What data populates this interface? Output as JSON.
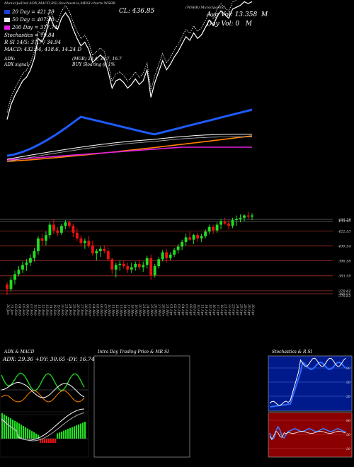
{
  "header": {
    "chart_title": "(WSBB) MunicipalInd",
    "source_line": "MunicipalInd ADX,MACD,RSI,Stochastics,MRSI charts WSBB",
    "close_label": "CL: 436.85",
    "avg_vol_label": "Avg Vol: 13.358",
    "avg_vol_unit": "M",
    "day_vol_label": "Day Vol: 0",
    "day_vol_unit": "M",
    "macd_line": "MACD: 432.84, 418.6, 14.24 D",
    "adx_label": "ADX:",
    "adx_signal_label": "ADX signal:",
    "mgr_text": "(MGR) 29.4, 30.7, 16.7",
    "buy_text": "BUY Sloaring @ 1%"
  },
  "legend": [
    {
      "label": "20  Day = 421.29",
      "color": "#1a3fd6"
    },
    {
      "label": "50  Day = 407.48",
      "color": "#f0f0f0"
    },
    {
      "label": "200  Day = 377.74",
      "color": "#e020e0"
    },
    {
      "label": "Stochastics = 79.84",
      "color": ""
    },
    {
      "label": "R       SI 14/5: 37.7 / 34.94",
      "color": ""
    }
  ],
  "chart_data": [
    {
      "type": "line",
      "name": "price panel",
      "x": [
        "30 Jan",
        "31 Jan",
        "03 Feb",
        "04 Feb",
        "05 Feb",
        "06 Feb",
        "07 Feb",
        "10 Feb",
        "11 Feb",
        "12 Feb",
        "13 Feb",
        "14 Feb",
        "18 Feb",
        "19 Feb",
        "20 Feb",
        "21 Feb",
        "24 Feb",
        "25 Feb",
        "26 Feb",
        "27 Feb",
        "28 Feb",
        "03 Mar",
        "04 Mar",
        "05 Mar",
        "06 Mar",
        "07 Mar",
        "10 Mar",
        "11 Mar",
        "12 Mar",
        "13 Mar",
        "14 Mar",
        "17 Mar",
        "18 Mar",
        "19 Mar",
        "20 Mar",
        "21 Mar",
        "24 Mar",
        "25 Mar",
        "26 Mar",
        "27 Mar",
        "28 Mar",
        "31 Mar",
        "01 Apr",
        "02 Apr",
        "03 Apr",
        "04 Apr",
        "07 Apr",
        "08 Apr",
        "09 Apr",
        "10 Apr",
        "11 Apr",
        "14 Apr",
        "15 Apr",
        "16 Apr",
        "17 Apr",
        "18 Apr",
        "21 Apr",
        "22 Apr",
        "23 Apr",
        "24 Apr",
        "25 Apr",
        "28 Apr",
        "29 Apr",
        "30 Apr"
      ],
      "series": [
        {
          "name": "20 Day MA",
          "color": "#1a3fd6"
        },
        {
          "name": "50 Day MA",
          "color": "#f0f0f0"
        },
        {
          "name": "200 Day MA",
          "color": "#e020e0"
        },
        {
          "name": "Long MA",
          "color": "#ff8000"
        }
      ]
    },
    {
      "type": "candlestick",
      "name": "candles",
      "candles": [
        [
          376,
          378,
          367,
          372
        ],
        [
          372,
          383,
          370,
          380
        ],
        [
          380,
          388,
          376,
          385
        ],
        [
          385,
          392,
          383,
          389
        ],
        [
          389,
          396,
          386,
          393
        ],
        [
          393,
          398,
          388,
          395
        ],
        [
          395,
          402,
          392,
          399
        ],
        [
          399,
          408,
          396,
          405
        ],
        [
          405,
          418,
          402,
          416
        ],
        [
          416,
          420,
          410,
          414
        ],
        [
          414,
          422,
          410,
          419
        ],
        [
          419,
          430,
          416,
          428
        ],
        [
          428,
          433,
          420,
          423
        ],
        [
          423,
          426,
          418,
          421
        ],
        [
          421,
          429,
          419,
          427
        ],
        [
          427,
          432,
          424,
          430
        ],
        [
          430,
          432,
          425,
          427
        ],
        [
          427,
          429,
          417,
          421
        ],
        [
          421,
          425,
          414,
          416
        ],
        [
          416,
          419,
          410,
          412
        ],
        [
          412,
          416,
          407,
          414
        ],
        [
          414,
          418,
          408,
          410
        ],
        [
          410,
          414,
          401,
          403
        ],
        [
          403,
          407,
          397,
          405
        ],
        [
          405,
          409,
          400,
          407
        ],
        [
          407,
          410,
          403,
          405
        ],
        [
          405,
          408,
          396,
          398
        ],
        [
          398,
          399,
          385,
          389
        ],
        [
          389,
          395,
          382,
          393
        ],
        [
          393,
          397,
          388,
          394
        ],
        [
          394,
          397,
          390,
          392
        ],
        [
          392,
          395,
          386,
          389
        ],
        [
          389,
          395,
          386,
          391
        ],
        [
          391,
          396,
          388,
          394
        ],
        [
          394,
          397,
          389,
          391
        ],
        [
          391,
          396,
          387,
          393
        ],
        [
          393,
          401,
          390,
          399
        ],
        [
          399,
          402,
          380,
          384
        ],
        [
          384,
          394,
          382,
          392
        ],
        [
          392,
          400,
          390,
          398
        ],
        [
          398,
          406,
          396,
          404
        ],
        [
          404,
          407,
          395,
          399
        ],
        [
          399,
          404,
          397,
          402
        ],
        [
          402,
          408,
          400,
          406
        ],
        [
          406,
          411,
          403,
          409
        ],
        [
          409,
          415,
          406,
          413
        ],
        [
          413,
          420,
          410,
          417
        ],
        [
          417,
          422,
          414,
          415
        ],
        [
          415,
          420,
          411,
          419
        ],
        [
          419,
          421,
          413,
          416
        ],
        [
          416,
          420,
          413,
          418
        ],
        [
          418,
          424,
          416,
          422
        ],
        [
          422,
          428,
          420,
          426
        ],
        [
          426,
          428,
          420,
          423
        ],
        [
          423,
          430,
          421,
          428
        ],
        [
          428,
          433,
          424,
          431
        ],
        [
          431,
          434,
          428,
          429
        ],
        [
          429,
          432,
          424,
          427
        ],
        [
          427,
          434,
          425,
          432
        ],
        [
          432,
          436,
          427,
          433
        ],
        [
          433,
          437,
          430,
          434
        ],
        [
          434,
          437,
          431,
          436
        ],
        [
          436,
          439,
          433,
          435
        ],
        [
          435,
          438,
          432,
          436
        ]
      ],
      "price_levels": [
        "430.58",
        "433.45",
        "422.53",
        "409.54",
        "396.58",
        "383.59",
        "370.62",
        "368.01",
        "370.62"
      ]
    },
    {
      "type": "line",
      "name": "ADX & MACD",
      "title": "ADX  & MACD",
      "values_label": "ADX: 29.36  +DY: 30.65  -DY: 16.74"
    },
    {
      "type": "line",
      "name": "Intra Day",
      "title": "Intra  Day Trading Price  & MR          SI"
    },
    {
      "type": "line",
      "name": "Stochastics & RSI",
      "title": "Stochastics & R          SI",
      "stoch_ticks": [
        "80",
        "50",
        "20"
      ],
      "rsi_ticks": [
        "80",
        "50",
        "20"
      ]
    }
  ]
}
